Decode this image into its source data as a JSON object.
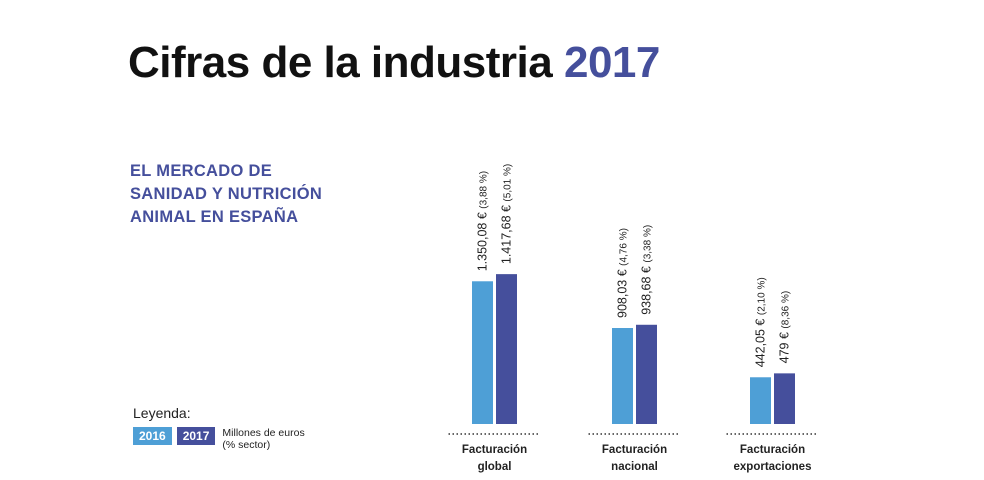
{
  "header": {
    "title": "Cifras de la industria",
    "title_year": "2017"
  },
  "subtitle_lines": [
    "EL MERCADO DE",
    "SANIDAD Y NUTRICIÓN",
    "ANIMAL EN ESPAÑA"
  ],
  "legend": {
    "title": "Leyenda:",
    "units_line1": "Millones de euros",
    "units_line2": "(% sector)"
  },
  "colors": {
    "series_2016": "#4e9fd6",
    "series_2017": "#454f9c",
    "title_accent": "#454f9c"
  },
  "chart_data": {
    "type": "bar",
    "title": "",
    "categories": [
      [
        "Facturación",
        "global"
      ],
      [
        "Facturación",
        "nacional"
      ],
      [
        "Facturación",
        "exportaciones"
      ]
    ],
    "series": [
      {
        "name": "2016",
        "values": [
          1350.08,
          908.03,
          442.05
        ],
        "value_labels": [
          "1.350,08 €",
          "908,03 €",
          "442,05 €"
        ],
        "share_labels": [
          "(3,88 %)",
          "(4,76 %)",
          "(2,10 %)"
        ]
      },
      {
        "name": "2017",
        "values": [
          1417.68,
          938.68,
          479
        ],
        "value_labels": [
          "1.417,68 €",
          "938,68 €",
          "479 €"
        ],
        "share_labels": [
          "(5,01 %)",
          "(3,38 %)",
          "(8,36 %)"
        ]
      }
    ],
    "ylabel": "Millones de euros",
    "ylim": [
      0,
      1750
    ],
    "grid": false,
    "legend_position": "bottom-left"
  }
}
